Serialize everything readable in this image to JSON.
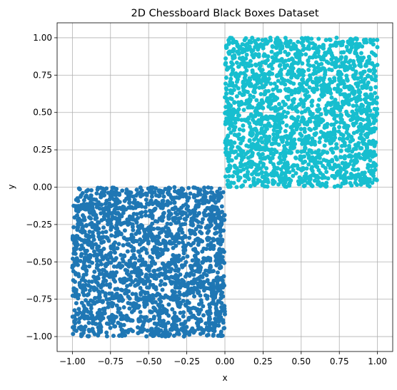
{
  "chart_data": {
    "type": "scatter",
    "title": "2D Chessboard Black Boxes Dataset",
    "xlabel": "x",
    "ylabel": "y",
    "xlim": [
      -1.1,
      1.1
    ],
    "ylim": [
      -1.1,
      1.1
    ],
    "xticks": [
      -1.0,
      -0.75,
      -0.5,
      -0.25,
      0.0,
      0.25,
      0.5,
      0.75,
      1.0
    ],
    "yticks": [
      -1.0,
      -0.75,
      -0.5,
      -0.25,
      0.0,
      0.25,
      0.5,
      0.75,
      1.0
    ],
    "xtick_labels": [
      "−1.00",
      "−0.75",
      "−0.50",
      "−0.25",
      "0.00",
      "0.25",
      "0.50",
      "0.75",
      "1.00"
    ],
    "ytick_labels": [
      "−1.00",
      "−0.75",
      "−0.50",
      "−0.25",
      "0.00",
      "0.25",
      "0.50",
      "0.75",
      "1.00"
    ],
    "grid": true,
    "series": [
      {
        "color": "#1f77b4",
        "region": {
          "x": [
            -1.0,
            0.0
          ],
          "y": [
            -1.0,
            0.0
          ]
        },
        "approx_points": 2000
      },
      {
        "color": "#17becf",
        "region": {
          "x": [
            0.0,
            1.0
          ],
          "y": [
            0.0,
            1.0
          ]
        },
        "approx_points": 2000
      }
    ]
  }
}
